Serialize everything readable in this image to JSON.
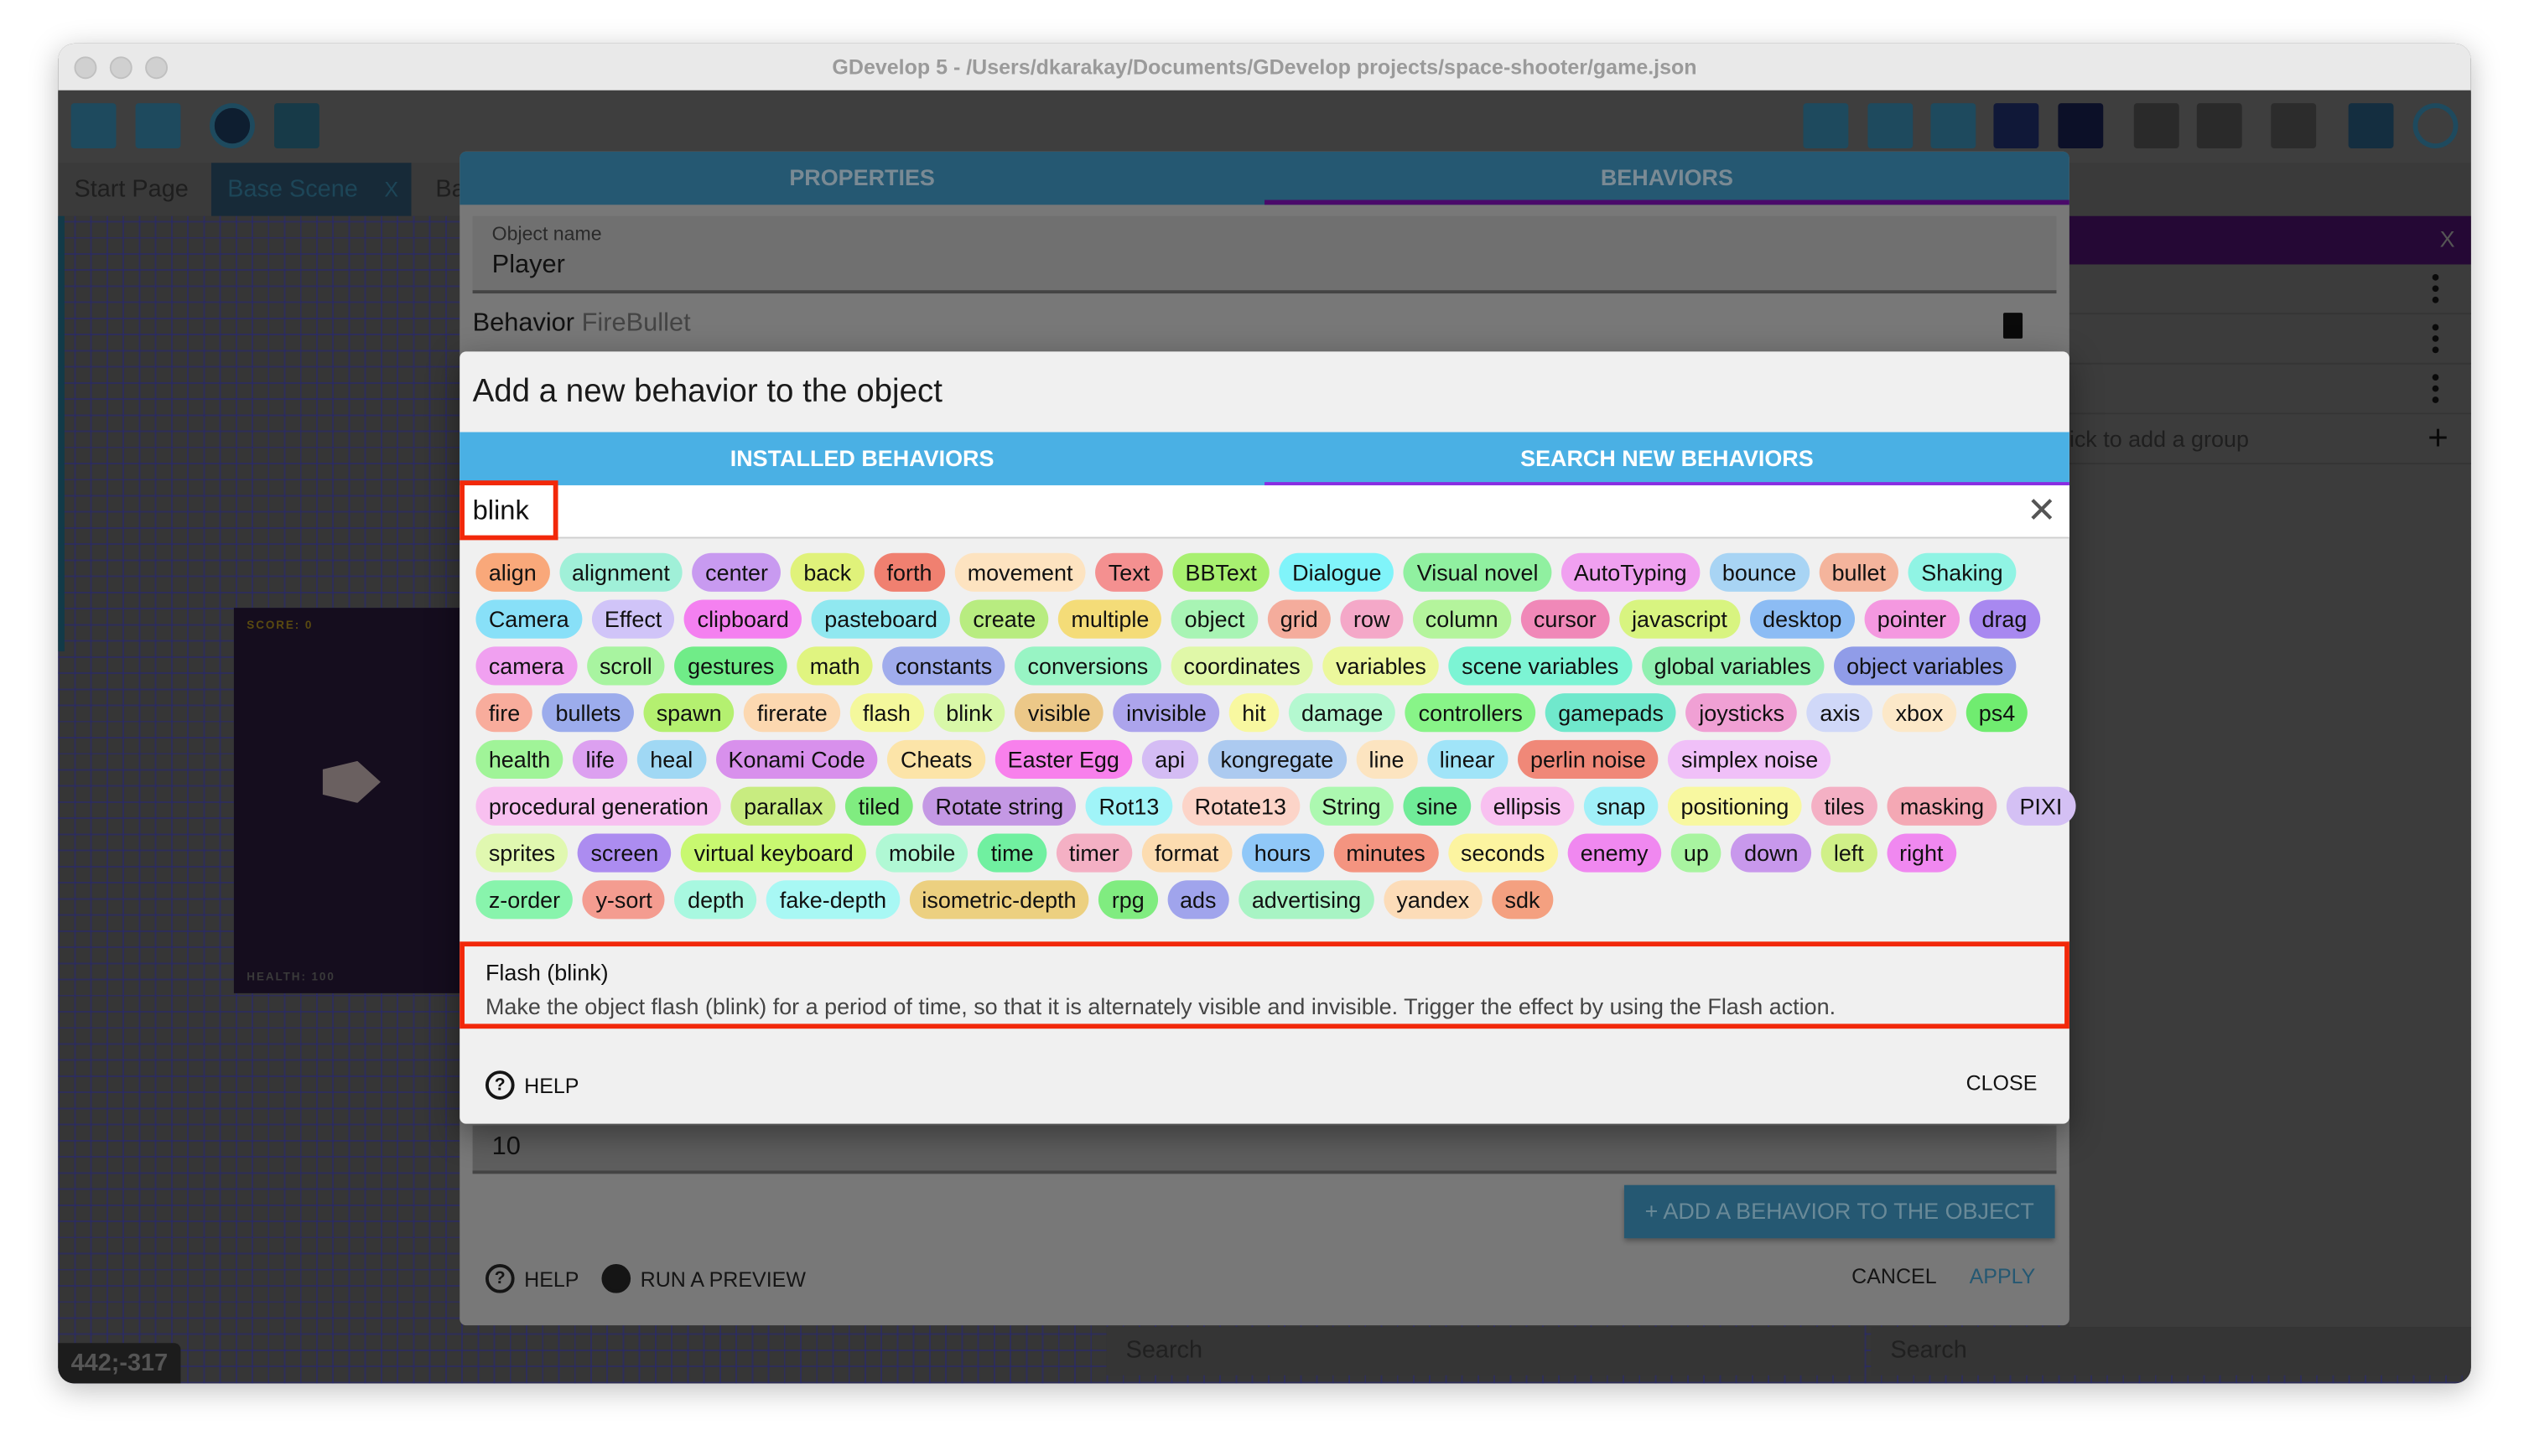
{
  "window": {
    "title": "GDevelop 5 - /Users/dkarakay/Documents/GDevelop projects/space-shooter/game.json"
  },
  "tabs": [
    {
      "label": "Start Page"
    },
    {
      "label": "Base Scene",
      "close": "X"
    },
    {
      "label": "Ba"
    }
  ],
  "canvas": {
    "coordinates": "442;-317",
    "score": "SCORE: 0",
    "health": "HEALTH: 100"
  },
  "right_panel": {
    "close": "X",
    "add_group": "ick to add a group",
    "add_icon": "+"
  },
  "bottom_search": [
    {
      "placeholder": "Search"
    },
    {
      "placeholder": "Search"
    }
  ],
  "properties_dialog": {
    "tabs": [
      {
        "label": "PROPERTIES"
      },
      {
        "label": "BEHAVIORS",
        "active": true
      }
    ],
    "object_name_label": "Object name",
    "object_name": "Player",
    "behavior_label": "Behavior",
    "behavior_name": "FireBullet",
    "field_value": "10",
    "add_behavior_button": "ADD A BEHAVIOR TO THE OBJECT",
    "help": "HELP",
    "run_preview": "RUN A PREVIEW",
    "cancel": "CANCEL",
    "apply": "APPLY"
  },
  "add_behavior_dialog": {
    "title": "Add a new behavior to the object",
    "tabs": [
      {
        "label": "INSTALLED BEHAVIORS"
      },
      {
        "label": "SEARCH NEW BEHAVIORS",
        "active": true
      }
    ],
    "search_value": "blink",
    "tag_rows": [
      [
        [
          "align",
          "#f9a87a"
        ],
        [
          "alignment",
          "#a0f0d8"
        ],
        [
          "center",
          "#c89af0"
        ],
        [
          "back",
          "#e0f27a"
        ],
        [
          "forth",
          "#f08070"
        ],
        [
          "movement",
          "#fde3c0"
        ],
        [
          "Text",
          "#f49090"
        ],
        [
          "BBText",
          "#a8f070"
        ],
        [
          "Dialogue",
          "#80f4fa"
        ],
        [
          "Visual novel",
          "#90f0a0"
        ],
        [
          "AutoTyping",
          "#f0a0f0"
        ],
        [
          "bounce",
          "#a8d4f4"
        ],
        [
          "bullet",
          "#f4b49c"
        ],
        [
          "Shaking",
          "#90f4e4"
        ]
      ],
      [
        [
          "Camera",
          "#88e0f8"
        ],
        [
          "Effect",
          "#d0c4f8"
        ],
        [
          "clipboard",
          "#f480f0"
        ],
        [
          "pasteboard",
          "#90e8f0"
        ],
        [
          "create",
          "#b8ec80"
        ],
        [
          "multiple",
          "#f4dc78"
        ],
        [
          "object",
          "#a8f4b4"
        ],
        [
          "grid",
          "#f4ac9c"
        ],
        [
          "row",
          "#f4a8c8"
        ],
        [
          "column",
          "#b4f49c"
        ],
        [
          "cursor",
          "#f088b8"
        ],
        [
          "javascript",
          "#d8f480"
        ],
        [
          "desktop",
          "#8cbcf4"
        ],
        [
          "pointer",
          "#f498e0"
        ],
        [
          "drag",
          "#a888f0"
        ]
      ],
      [
        [
          "camera",
          "#f0a0f0"
        ],
        [
          "scroll",
          "#a8f4a0"
        ],
        [
          "gestures",
          "#70ec88"
        ],
        [
          "math",
          "#e0f480"
        ],
        [
          "constants",
          "#a0acec"
        ],
        [
          "conversions",
          "#98f4c4"
        ],
        [
          "coordinates",
          "#e0f8a8"
        ],
        [
          "variables",
          "#ecf89c"
        ],
        [
          "scene variables",
          "#7cf4d4"
        ],
        [
          "global variables",
          "#90f0b0"
        ],
        [
          "object variables",
          "#909ce8"
        ]
      ],
      [
        [
          "fire",
          "#f8ac9c"
        ],
        [
          "bullets",
          "#9cacec"
        ],
        [
          "spawn",
          "#b4f070"
        ],
        [
          "firerate",
          "#fcd8b0"
        ],
        [
          "flash",
          "#f4f89c"
        ],
        [
          "blink",
          "#d8f8a8"
        ],
        [
          "visible",
          "#ecc888"
        ],
        [
          "invisible",
          "#aca4ec"
        ],
        [
          "hit",
          "#f8f8a0"
        ],
        [
          "damage",
          "#b4f8d0"
        ],
        [
          "controllers",
          "#88f488"
        ],
        [
          "gamepads",
          "#70e8cc"
        ],
        [
          "joysticks",
          "#f0a0d4"
        ],
        [
          "axis",
          "#d0d8f8"
        ],
        [
          "xbox",
          "#fce8c8"
        ],
        [
          "ps4",
          "#70ec70"
        ]
      ],
      [
        [
          "health",
          "#a0f498"
        ],
        [
          "life",
          "#dca0f0"
        ],
        [
          "heal",
          "#a0d8f4"
        ],
        [
          "Konami Code",
          "#d890ec"
        ],
        [
          "Cheats",
          "#fce4a8"
        ],
        [
          "Easter Egg",
          "#f880ec"
        ],
        [
          "api",
          "#d4bcf4"
        ],
        [
          "kongregate",
          "#accaf0"
        ],
        [
          "line",
          "#fce4c0"
        ],
        [
          "linear",
          "#a0e4f8"
        ],
        [
          "perlin noise",
          "#f08878"
        ],
        [
          "simplex noise",
          "#f0c0f8"
        ]
      ],
      [
        [
          "procedural generation",
          "#f8c0f0"
        ],
        [
          "parallax",
          "#c8ec80"
        ],
        [
          "tiled",
          "#80ec80"
        ],
        [
          "Rotate string",
          "#c498e4"
        ],
        [
          "Rot13",
          "#a0f4f8"
        ],
        [
          "Rotate13",
          "#fcd4c8"
        ],
        [
          "String",
          "#acf8b0"
        ],
        [
          "sine",
          "#70ec98"
        ],
        [
          "ellipsis",
          "#f8c0f0"
        ],
        [
          "snap",
          "#a0f0f8"
        ],
        [
          "positioning",
          "#f8f8a0"
        ],
        [
          "tiles",
          "#f4b0c4"
        ],
        [
          "masking",
          "#f4a8b4"
        ],
        [
          "PIXI",
          "#d4c0f4"
        ]
      ],
      [
        [
          "sprites",
          "#e0f8b0"
        ],
        [
          "screen",
          "#ac8cf0"
        ],
        [
          "virtual keyboard",
          "#c8f870"
        ],
        [
          "mobile",
          "#b0f8d4"
        ],
        [
          "time",
          "#70f0a0"
        ],
        [
          "timer",
          "#f4b0c4"
        ],
        [
          "format",
          "#fcdcb0"
        ],
        [
          "hours",
          "#90c8f8"
        ],
        [
          "minutes",
          "#f49480"
        ],
        [
          "seconds",
          "#fcf4a0"
        ],
        [
          "enemy",
          "#f088f0"
        ],
        [
          "up",
          "#a8f4a0"
        ],
        [
          "down",
          "#c898ec"
        ],
        [
          "left",
          "#d0f088"
        ],
        [
          "right",
          "#f088f0"
        ]
      ],
      [
        [
          "z-order",
          "#88f4ac"
        ],
        [
          "y-sort",
          "#f49c90"
        ],
        [
          "depth",
          "#a8f8e0"
        ],
        [
          "fake-depth",
          "#a8f8f4"
        ],
        [
          "isometric-depth",
          "#ecd080"
        ],
        [
          "rpg",
          "#80ec80"
        ],
        [
          "ads",
          "#a0a4ec"
        ],
        [
          "advertising",
          "#a8f4c4"
        ],
        [
          "yandex",
          "#fcdcb8"
        ],
        [
          "sdk",
          "#f4a080"
        ]
      ]
    ],
    "result": {
      "title": "Flash (blink)",
      "description": "Make the object flash (blink) for a period of time, so that it is alternately visible and invisible. Trigger the effect by using the Flash action."
    },
    "help": "HELP",
    "close": "CLOSE"
  },
  "colors": {
    "accent": "#4ab0e4",
    "tab_indicator": "#8a2be2",
    "highlight_box": "#f2280a"
  }
}
